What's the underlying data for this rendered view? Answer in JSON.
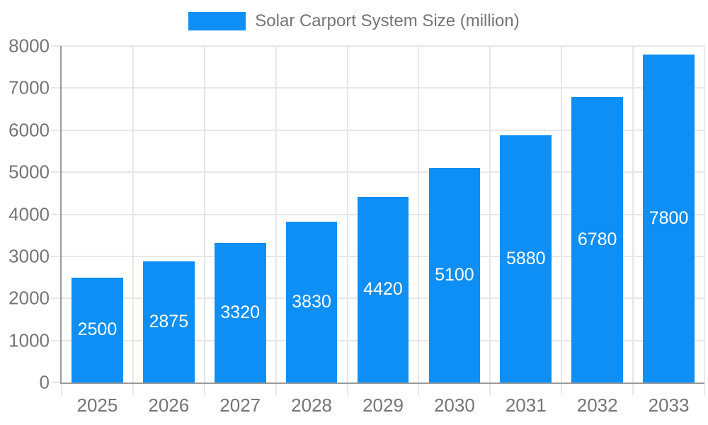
{
  "legend": {
    "label": "Solar Carport System Size (million)"
  },
  "chart_data": {
    "type": "bar",
    "title": "Solar Carport System Size (million)",
    "categories": [
      "2025",
      "2026",
      "2027",
      "2028",
      "2029",
      "2030",
      "2031",
      "2032",
      "2033"
    ],
    "series": [
      {
        "name": "Solar Carport System Size (million)",
        "values": [
          2500,
          2875,
          3320,
          3830,
          4420,
          5100,
          5880,
          6780,
          7800
        ]
      }
    ],
    "xlabel": "",
    "ylabel": "",
    "ylim": [
      0,
      8000
    ],
    "y_ticks": [
      0,
      1000,
      2000,
      3000,
      4000,
      5000,
      6000,
      7000,
      8000
    ],
    "grid": true,
    "legend_position": "top-center",
    "bar_color": "#0d8ff5",
    "value_label_color": "#ffffff",
    "axis_line_color": "#9a9a9a",
    "gridline_color": "#e7e7e7",
    "tick_label_color": "#757575"
  }
}
